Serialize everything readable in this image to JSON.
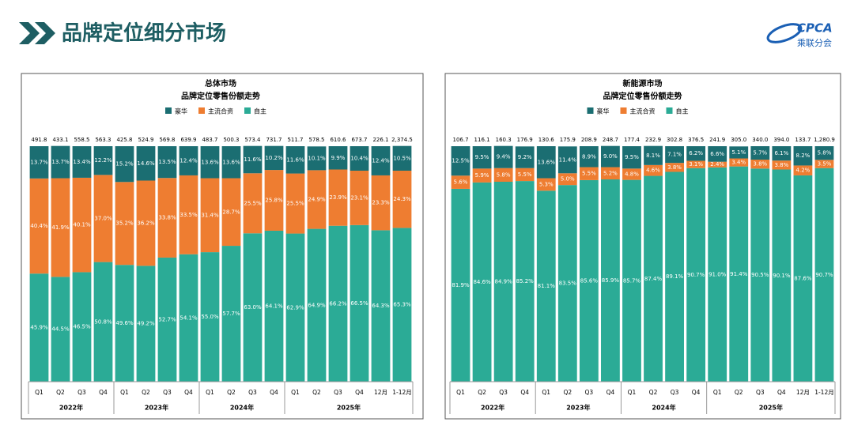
{
  "header": {
    "title": "品牌定位细分市场",
    "logo_text": "CPCA",
    "logo_sub": "乘联分会"
  },
  "chart_data": [
    {
      "type": "stacked-bar",
      "title": "总体市场",
      "subtitle": "品牌定位零售份额走势",
      "categories": [
        "Q1",
        "Q2",
        "Q3",
        "Q4",
        "Q1",
        "Q2",
        "Q3",
        "Q4",
        "Q1",
        "Q2",
        "Q3",
        "Q4",
        "Q1",
        "Q2",
        "Q3",
        "Q4",
        "12月",
        "1-12月"
      ],
      "groups": [
        "2022年",
        "2023年",
        "2024年",
        "2025年"
      ],
      "ylim": [
        0,
        100
      ],
      "totals": {
        "values": [
          491.8,
          433.1,
          558.5,
          563.3,
          425.8,
          524.9,
          569.8,
          639.9,
          483.7,
          500.3,
          573.4,
          731.7,
          511.7,
          578.5,
          610.6,
          673.7,
          226.1,
          2374.5
        ],
        "value_labels": [
          "491.8",
          "433.1",
          "558.5",
          "563.3",
          "425.8",
          "524.9",
          "569.8",
          "639.9",
          "483.7",
          "500.3",
          "573.4",
          "731.7",
          "511.7",
          "578.5",
          "610.6",
          "673.7",
          "226.1",
          "2,374.5"
        ]
      },
      "series": [
        {
          "name": "豪华",
          "color": "#1b6e72",
          "values": [
            13.7,
            13.7,
            13.4,
            12.2,
            15.2,
            14.6,
            13.5,
            12.4,
            13.6,
            13.6,
            11.6,
            10.2,
            11.6,
            10.1,
            9.9,
            10.4,
            12.4,
            10.5
          ],
          "value_labels": [
            "13.7%",
            "13.7%",
            "13.4%",
            "12.2%",
            "15.2%",
            "14.6%",
            "13.5%",
            "12.4%",
            "13.6%",
            "13.6%",
            "11.6%",
            "10.2%",
            "11.6%",
            "10.1%",
            "9.9%",
            "10.4%",
            "12.4%",
            "10.5%"
          ]
        },
        {
          "name": "主流合资",
          "color": "#ee7d31",
          "values": [
            40.4,
            41.9,
            40.1,
            37.0,
            35.2,
            36.2,
            33.8,
            33.5,
            31.4,
            28.7,
            25.5,
            25.8,
            25.5,
            24.9,
            23.9,
            23.1,
            23.3,
            24.3
          ],
          "value_labels": [
            "40.4%",
            "41.9%",
            "40.1%",
            "37.0%",
            "35.2%",
            "36.2%",
            "33.8%",
            "33.5%",
            "31.4%",
            "28.7%",
            "25.5%",
            "25.8%",
            "25.5%",
            "24.9%",
            "23.9%",
            "23.1%",
            "23.3%",
            "24.3%"
          ]
        },
        {
          "name": "自主",
          "color": "#2bab96",
          "values": [
            45.9,
            44.5,
            46.5,
            50.8,
            49.6,
            49.2,
            52.7,
            54.1,
            55.0,
            57.7,
            63.0,
            64.1,
            62.9,
            64.9,
            66.2,
            66.5,
            64.3,
            65.3
          ],
          "value_labels": [
            "45.9%",
            "44.5%",
            "46.5%",
            "50.8%",
            "49.6%",
            "49.2%",
            "52.7%",
            "54.1%",
            "55.0%",
            "57.7%",
            "63.0%",
            "64.1%",
            "62.9%",
            "64.9%",
            "66.2%",
            "66.5%",
            "64.3%",
            "65.3%"
          ]
        }
      ]
    },
    {
      "type": "stacked-bar",
      "title": "新能源市场",
      "subtitle": "品牌定位零售份额走势",
      "categories": [
        "Q1",
        "Q2",
        "Q3",
        "Q4",
        "Q1",
        "Q2",
        "Q3",
        "Q4",
        "Q1",
        "Q2",
        "Q3",
        "Q4",
        "Q1",
        "Q2",
        "Q3",
        "Q4",
        "12月",
        "1-12月"
      ],
      "groups": [
        "2022年",
        "2023年",
        "2024年",
        "2025年"
      ],
      "ylim": [
        0,
        100
      ],
      "totals": {
        "values": [
          106.7,
          116.1,
          160.3,
          176.9,
          130.6,
          175.9,
          208.9,
          248.7,
          177.4,
          232.9,
          302.8,
          376.5,
          241.9,
          305.0,
          340.0,
          394.0,
          133.7,
          1280.9
        ],
        "value_labels": [
          "106.7",
          "116.1",
          "160.3",
          "176.9",
          "130.6",
          "175.9",
          "208.9",
          "248.7",
          "177.4",
          "232.9",
          "302.8",
          "376.5",
          "241.9",
          "305.0",
          "340.0",
          "394.0",
          "133.7",
          "1,280.9"
        ]
      },
      "series": [
        {
          "name": "豪华",
          "color": "#1b6e72",
          "values": [
            12.5,
            9.5,
            9.4,
            9.2,
            13.6,
            11.4,
            8.9,
            9.0,
            9.5,
            8.1,
            7.1,
            6.2,
            6.6,
            5.1,
            5.7,
            6.1,
            8.2,
            5.8
          ],
          "value_labels": [
            "12.5%",
            "9.5%",
            "9.4%",
            "9.2%",
            "13.6%",
            "11.4%",
            "8.9%",
            "9.0%",
            "9.5%",
            "8.1%",
            "7.1%",
            "6.2%",
            "6.6%",
            "5.1%",
            "5.7%",
            "6.1%",
            "8.2%",
            "5.8%"
          ]
        },
        {
          "name": "主流合资",
          "color": "#ee7d31",
          "values": [
            5.6,
            5.9,
            5.8,
            5.5,
            5.3,
            5.0,
            5.5,
            5.2,
            4.8,
            4.6,
            3.8,
            3.1,
            2.4,
            3.4,
            3.8,
            3.8,
            4.2,
            3.5
          ],
          "value_labels": [
            "5.6%",
            "5.9%",
            "5.8%",
            "5.5%",
            "5.3%",
            "5.0%",
            "5.5%",
            "5.2%",
            "4.8%",
            "4.6%",
            "3.8%",
            "3.1%",
            "2.4%",
            "3.4%",
            "3.8%",
            "3.8%",
            "4.2%",
            "3.5%"
          ]
        },
        {
          "name": "自主",
          "color": "#2bab96",
          "values": [
            81.9,
            84.6,
            84.9,
            85.2,
            81.1,
            83.5,
            85.6,
            85.9,
            85.7,
            87.4,
            89.1,
            90.7,
            91.0,
            91.4,
            90.5,
            90.1,
            87.6,
            90.7
          ],
          "value_labels": [
            "81.9%",
            "84.6%",
            "84.9%",
            "85.2%",
            "81.1%",
            "83.5%",
            "85.6%",
            "85.9%",
            "85.7%",
            "87.4%",
            "89.1%",
            "90.7%",
            "91.0%",
            "91.4%",
            "90.5%",
            "90.1%",
            "87.6%",
            "90.7%"
          ]
        }
      ]
    }
  ]
}
